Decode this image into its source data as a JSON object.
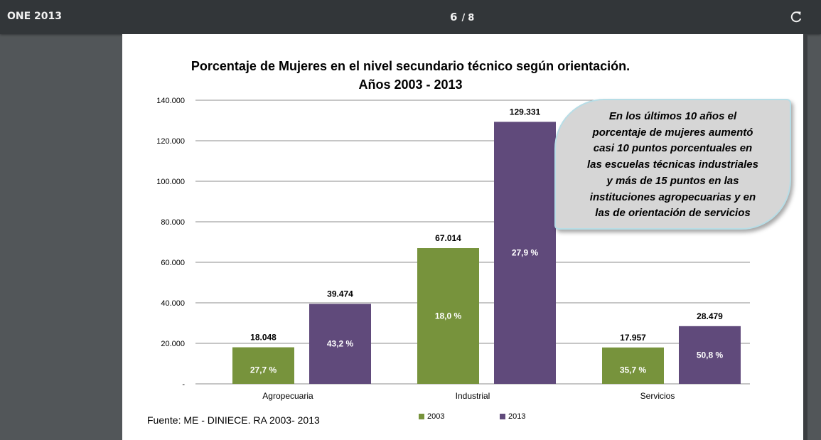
{
  "viewer": {
    "title": "ONE 2013",
    "current_page": "6",
    "separator": "/",
    "total_pages": "8",
    "rotate_icon": "rotate-icon"
  },
  "chart_title_line1": "Porcentaje de Mujeres en el nivel secundario técnico según orientación.",
  "chart_title_line2": "Años 2003 - 2013",
  "callout_lines": [
    "En los últimos 10 años el",
    "porcentaje de mujeres aumentó",
    "casi 10 puntos porcentuales en",
    "las escuelas técnicas industriales",
    "y más de 15 puntos en las",
    "instituciones agropecuarias y en",
    "las de orientación de servicios"
  ],
  "source": "Fuente: ME -  DINIECE. RA 2003- 2013",
  "colors": {
    "series_2003": "#77933c",
    "series_2013": "#604a7b",
    "gridline": "#8c8c8c"
  },
  "chart_data": {
    "type": "bar",
    "categories": [
      "Agropecuaria",
      "Industrial",
      "Servicios"
    ],
    "series": [
      {
        "name": "2003",
        "values": [
          18048,
          67014,
          17957
        ],
        "value_labels": [
          "18.048",
          "67.014",
          "17.957"
        ],
        "percent_labels": [
          "27,7 %",
          "18,0 %",
          "35,7 %"
        ]
      },
      {
        "name": "2013",
        "values": [
          39474,
          129331,
          28479
        ],
        "value_labels": [
          "39.474",
          "129.331",
          "28.479"
        ],
        "percent_labels": [
          "43,2 %",
          "27,9 %",
          "50,8 %"
        ]
      }
    ],
    "ytick_values": [
      0,
      20000,
      40000,
      60000,
      80000,
      100000,
      120000,
      140000
    ],
    "ytick_labels": [
      "-",
      "20.000",
      "40.000",
      "60.000",
      "80.000",
      "100.000",
      "120.000",
      "140.000"
    ],
    "ylim": [
      0,
      140000
    ],
    "grid": true,
    "legend_position": "bottom"
  }
}
